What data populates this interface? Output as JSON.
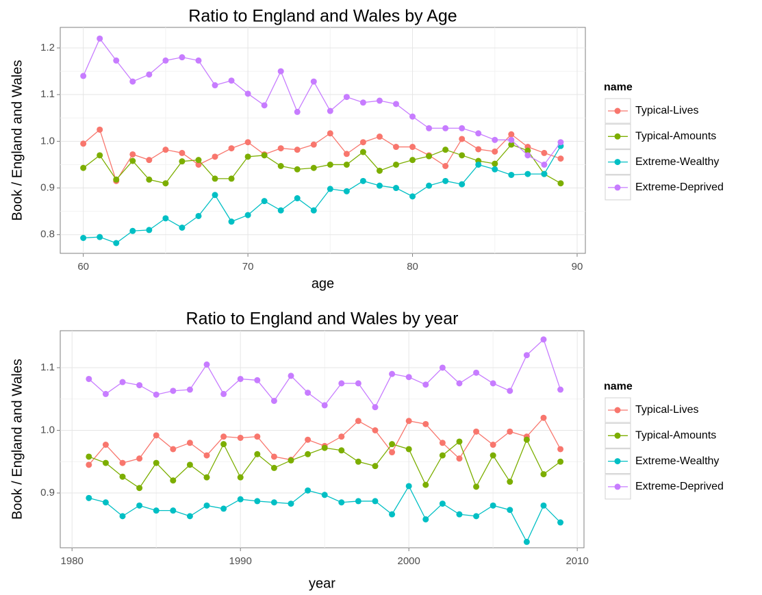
{
  "chart_data": [
    {
      "type": "line",
      "title": "Ratio to England and Wales by Age",
      "xlabel": "age",
      "ylabel": "Book / England and Wales",
      "legend_title": "name",
      "legend": "right",
      "grid": true,
      "x": [
        60,
        61,
        62,
        63,
        64,
        65,
        66,
        67,
        68,
        69,
        70,
        71,
        72,
        73,
        74,
        75,
        76,
        77,
        78,
        79,
        80,
        81,
        82,
        83,
        84,
        85,
        86,
        87,
        88,
        89
      ],
      "xlim": [
        58.6,
        90.5
      ],
      "xticks": [
        60,
        70,
        80,
        90
      ],
      "ylim": [
        0.76,
        1.244
      ],
      "yticks": [
        0.8,
        0.9,
        {
          "value": 1,
          "label": "1.0"
        },
        1.1,
        1.2
      ],
      "series": [
        {
          "name": "Typical-Lives",
          "color": "#F8766D",
          "values": [
            0.995,
            1.025,
            0.915,
            0.972,
            0.96,
            0.982,
            0.975,
            0.95,
            0.967,
            0.985,
            0.998,
            0.972,
            0.985,
            0.982,
            0.993,
            1.017,
            0.973,
            0.998,
            1.01,
            0.988,
            0.988,
            0.97,
            0.947,
            1.005,
            0.983,
            0.978,
            1.015,
            0.988,
            0.975,
            0.963
          ]
        },
        {
          "name": "Typical-Amounts",
          "color": "#7CAE00",
          "values": [
            0.943,
            0.97,
            0.918,
            0.958,
            0.918,
            0.91,
            0.957,
            0.96,
            0.92,
            0.92,
            0.967,
            0.97,
            0.947,
            0.94,
            0.943,
            0.95,
            0.95,
            0.977,
            0.937,
            0.95,
            0.96,
            0.968,
            0.982,
            0.97,
            0.958,
            0.952,
            0.993,
            0.98,
            0.93,
            0.91
          ]
        },
        {
          "name": "Extreme-Wealthy",
          "color": "#00BFC4",
          "values": [
            0.793,
            0.795,
            0.782,
            0.808,
            0.81,
            0.835,
            0.815,
            0.84,
            0.885,
            0.828,
            0.842,
            0.872,
            0.852,
            0.878,
            0.852,
            0.898,
            0.893,
            0.915,
            0.905,
            0.9,
            0.882,
            0.905,
            0.915,
            0.908,
            0.95,
            0.94,
            0.928,
            0.93,
            0.93,
            0.99
          ]
        },
        {
          "name": "Extreme-Deprived",
          "color": "#C77CFF",
          "values": [
            1.14,
            1.22,
            1.173,
            1.128,
            1.143,
            1.173,
            1.18,
            1.173,
            1.12,
            1.13,
            1.102,
            1.077,
            1.15,
            1.063,
            1.128,
            1.065,
            1.095,
            1.083,
            1.087,
            1.08,
            1.053,
            1.028,
            1.028,
            1.028,
            1.017,
            1.003,
            1.003,
            0.97,
            0.95,
            0.998
          ]
        }
      ]
    },
    {
      "type": "line",
      "title": "Ratio to England and Wales by year",
      "xlabel": "year",
      "ylabel": "Book / England and Wales",
      "legend_title": "name",
      "legend": "right",
      "grid": true,
      "x": [
        1981,
        1982,
        1983,
        1984,
        1985,
        1986,
        1987,
        1988,
        1989,
        1990,
        1991,
        1992,
        1993,
        1994,
        1995,
        1996,
        1997,
        1998,
        1999,
        2000,
        2001,
        2002,
        2003,
        2004,
        2005,
        2006,
        2007,
        2008,
        2009
      ],
      "xlim": [
        1979.3,
        2010.4
      ],
      "xticks": [
        1980,
        1990,
        2000,
        2010
      ],
      "ylim": [
        0.8126,
        1.159
      ],
      "yticks": [
        0.9,
        {
          "value": 1,
          "label": "1.0"
        },
        1.1
      ],
      "series": [
        {
          "name": "Typical-Lives",
          "color": "#F8766D",
          "values": [
            0.945,
            0.977,
            0.948,
            0.955,
            0.992,
            0.97,
            0.98,
            0.96,
            0.99,
            0.988,
            0.99,
            0.958,
            0.953,
            0.985,
            0.975,
            0.99,
            1.015,
            1.0,
            0.965,
            1.015,
            1.01,
            0.98,
            0.955,
            0.998,
            0.977,
            0.998,
            0.99,
            1.02,
            0.97
          ]
        },
        {
          "name": "Typical-Amounts",
          "color": "#7CAE00",
          "values": [
            0.958,
            0.948,
            0.926,
            0.908,
            0.948,
            0.92,
            0.945,
            0.925,
            0.978,
            0.925,
            0.962,
            0.94,
            0.952,
            0.962,
            0.972,
            0.968,
            0.95,
            0.943,
            0.978,
            0.97,
            0.913,
            0.96,
            0.982,
            0.91,
            0.96,
            0.918,
            0.985,
            0.93,
            0.95
          ]
        },
        {
          "name": "Extreme-Wealthy",
          "color": "#00BFC4",
          "values": [
            0.892,
            0.885,
            0.863,
            0.88,
            0.872,
            0.872,
            0.863,
            0.88,
            0.875,
            0.89,
            0.887,
            0.885,
            0.883,
            0.904,
            0.897,
            0.885,
            0.887,
            0.887,
            0.866,
            0.911,
            0.858,
            0.883,
            0.866,
            0.863,
            0.88,
            0.873,
            0.822,
            0.88,
            0.853
          ]
        },
        {
          "name": "Extreme-Deprived",
          "color": "#C77CFF",
          "values": [
            1.082,
            1.058,
            1.077,
            1.072,
            1.057,
            1.063,
            1.065,
            1.105,
            1.058,
            1.082,
            1.08,
            1.047,
            1.087,
            1.06,
            1.04,
            1.075,
            1.075,
            1.037,
            1.09,
            1.085,
            1.073,
            1.1,
            1.075,
            1.092,
            1.075,
            1.063,
            1.12,
            1.145,
            1.065
          ]
        }
      ]
    }
  ]
}
